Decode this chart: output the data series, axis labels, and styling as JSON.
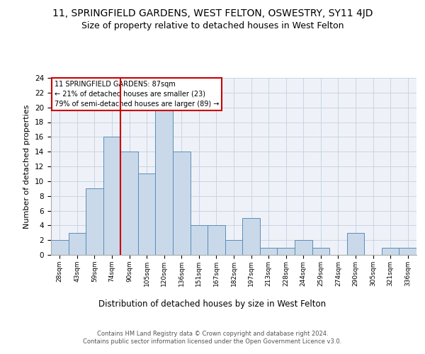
{
  "title_line1": "11, SPRINGFIELD GARDENS, WEST FELTON, OSWESTRY, SY11 4JD",
  "title_line2": "Size of property relative to detached houses in West Felton",
  "xlabel": "Distribution of detached houses by size in West Felton",
  "ylabel": "Number of detached properties",
  "bar_labels": [
    "28sqm",
    "43sqm",
    "59sqm",
    "74sqm",
    "90sqm",
    "105sqm",
    "120sqm",
    "136sqm",
    "151sqm",
    "167sqm",
    "182sqm",
    "197sqm",
    "213sqm",
    "228sqm",
    "244sqm",
    "259sqm",
    "274sqm",
    "290sqm",
    "305sqm",
    "321sqm",
    "336sqm"
  ],
  "bar_values": [
    2,
    3,
    9,
    16,
    14,
    11,
    20,
    14,
    4,
    4,
    2,
    5,
    1,
    1,
    2,
    1,
    0,
    3,
    0,
    1,
    1
  ],
  "bar_color": "#c9d9ea",
  "bar_edge_color": "#5b8db8",
  "vline_x": 3.5,
  "vline_color": "#cc0000",
  "annotation_box_text": "11 SPRINGFIELD GARDENS: 87sqm\n← 21% of detached houses are smaller (23)\n79% of semi-detached houses are larger (89) →",
  "ylim": [
    0,
    24
  ],
  "yticks": [
    0,
    2,
    4,
    6,
    8,
    10,
    12,
    14,
    16,
    18,
    20,
    22,
    24
  ],
  "grid_color": "#c8d4e3",
  "bg_color": "#eef2f8",
  "footer_text": "Contains HM Land Registry data © Crown copyright and database right 2024.\nContains public sector information licensed under the Open Government Licence v3.0.",
  "title_fontsize": 10,
  "subtitle_fontsize": 9,
  "xlabel_fontsize": 8.5,
  "ylabel_fontsize": 8
}
